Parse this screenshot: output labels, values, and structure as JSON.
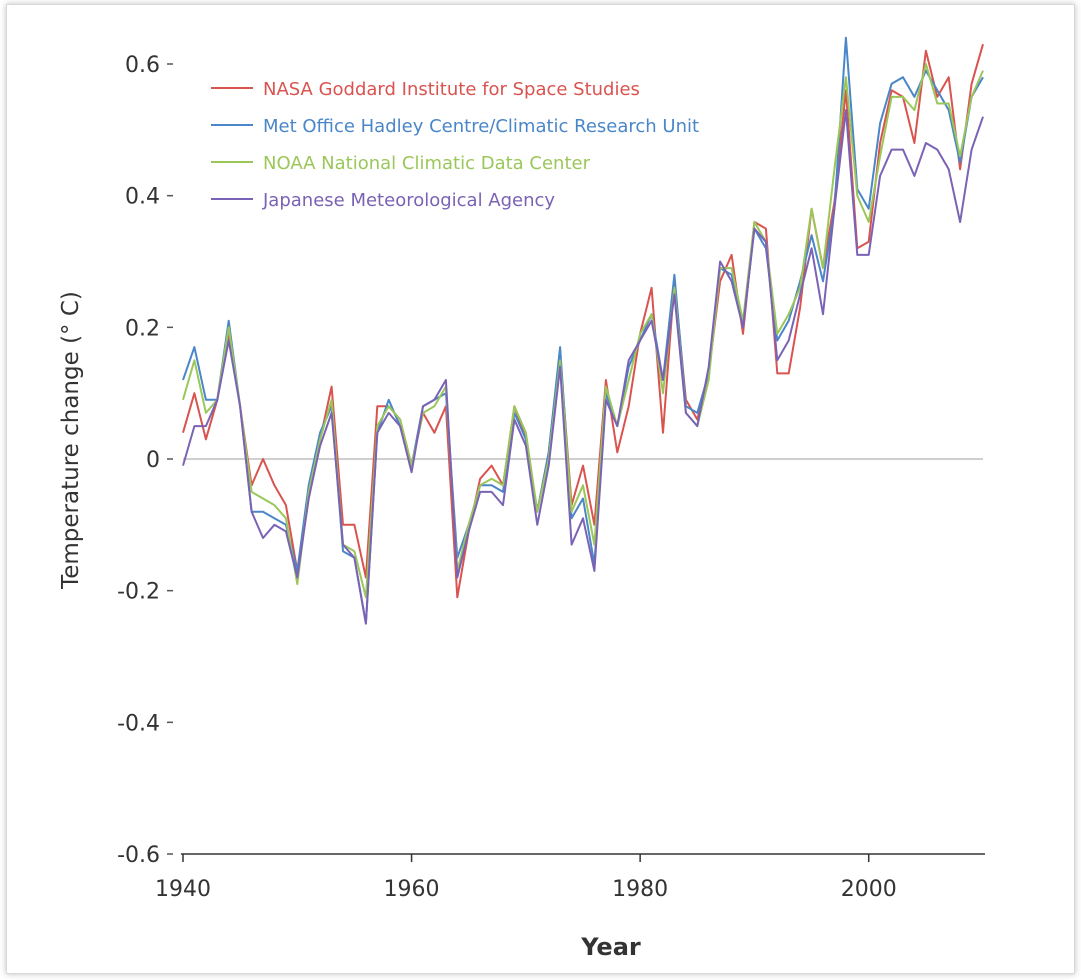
{
  "chart_data": {
    "type": "line",
    "title": "",
    "xlabel": "Year",
    "ylabel": "Temperature change (° C)",
    "xlim": [
      1940,
      2010
    ],
    "ylim": [
      -0.6,
      0.6
    ],
    "xticks": [
      1940,
      1960,
      1980,
      2000
    ],
    "yticks": [
      0.6,
      0.4,
      0.2,
      0,
      -0.2,
      -0.4,
      -0.6
    ],
    "ytick_labels": [
      "0.6",
      "0.4",
      "0.2",
      "0",
      "-0.2",
      "-0.4",
      "-0.6"
    ],
    "grid": false,
    "zero_line": true,
    "legend_position": "top-left",
    "x": [
      1940,
      1941,
      1942,
      1943,
      1944,
      1945,
      1946,
      1947,
      1948,
      1949,
      1950,
      1951,
      1952,
      1953,
      1954,
      1955,
      1956,
      1957,
      1958,
      1959,
      1960,
      1961,
      1962,
      1963,
      1964,
      1965,
      1966,
      1967,
      1968,
      1969,
      1970,
      1971,
      1972,
      1973,
      1974,
      1975,
      1976,
      1977,
      1978,
      1979,
      1980,
      1981,
      1982,
      1983,
      1984,
      1985,
      1986,
      1987,
      1988,
      1989,
      1990,
      1991,
      1992,
      1993,
      1994,
      1995,
      1996,
      1997,
      1998,
      1999,
      2000,
      2001,
      2002,
      2003,
      2004,
      2005,
      2006,
      2007,
      2008,
      2009,
      2010
    ],
    "series": [
      {
        "name": "NASA Goddard Institute for Space Studies",
        "color": "#d9534f",
        "values": [
          0.04,
          0.1,
          0.03,
          0.09,
          0.19,
          0.08,
          -0.04,
          0.0,
          -0.04,
          -0.07,
          -0.17,
          -0.06,
          0.03,
          0.11,
          -0.1,
          -0.1,
          -0.18,
          0.08,
          0.08,
          0.06,
          -0.01,
          0.07,
          0.04,
          0.08,
          -0.21,
          -0.11,
          -0.03,
          -0.01,
          -0.04,
          0.08,
          0.03,
          -0.08,
          0.01,
          0.16,
          -0.07,
          -0.01,
          -0.1,
          0.12,
          0.01,
          0.08,
          0.19,
          0.26,
          0.04,
          0.27,
          0.09,
          0.06,
          0.13,
          0.27,
          0.31,
          0.19,
          0.36,
          0.35,
          0.13,
          0.13,
          0.23,
          0.38,
          0.29,
          0.39,
          0.56,
          0.32,
          0.33,
          0.48,
          0.56,
          0.55,
          0.48,
          0.62,
          0.55,
          0.58,
          0.44,
          0.57,
          0.63
        ]
      },
      {
        "name": "Met Office Hadley Centre/Climatic Research Unit",
        "color": "#4a86c8",
        "values": [
          0.12,
          0.17,
          0.09,
          0.09,
          0.21,
          0.08,
          -0.08,
          -0.08,
          -0.09,
          -0.1,
          -0.17,
          -0.04,
          0.04,
          0.08,
          -0.14,
          -0.15,
          -0.25,
          0.04,
          0.09,
          0.05,
          -0.01,
          0.08,
          0.09,
          0.1,
          -0.15,
          -0.1,
          -0.04,
          -0.04,
          -0.05,
          0.07,
          0.03,
          -0.08,
          0.01,
          0.17,
          -0.09,
          -0.06,
          -0.16,
          0.1,
          0.05,
          0.14,
          0.18,
          0.22,
          0.12,
          0.28,
          0.08,
          0.07,
          0.13,
          0.29,
          0.28,
          0.2,
          0.35,
          0.32,
          0.18,
          0.21,
          0.27,
          0.34,
          0.27,
          0.38,
          0.64,
          0.41,
          0.38,
          0.51,
          0.57,
          0.58,
          0.55,
          0.59,
          0.56,
          0.53,
          0.45,
          0.55,
          0.58
        ]
      },
      {
        "name": "NOAA National Climatic Data Center",
        "color": "#9bc75a",
        "values": [
          0.09,
          0.15,
          0.07,
          0.09,
          0.2,
          0.08,
          -0.05,
          -0.06,
          -0.07,
          -0.09,
          -0.19,
          -0.05,
          0.03,
          0.09,
          -0.13,
          -0.14,
          -0.21,
          0.05,
          0.08,
          0.06,
          -0.01,
          0.07,
          0.08,
          0.11,
          -0.17,
          -0.1,
          -0.04,
          -0.03,
          -0.04,
          0.08,
          0.04,
          -0.08,
          0.0,
          0.15,
          -0.08,
          -0.04,
          -0.13,
          0.11,
          0.05,
          0.12,
          0.19,
          0.22,
          0.1,
          0.26,
          0.07,
          0.05,
          0.12,
          0.29,
          0.29,
          0.21,
          0.36,
          0.33,
          0.19,
          0.22,
          0.26,
          0.38,
          0.29,
          0.44,
          0.58,
          0.4,
          0.36,
          0.46,
          0.55,
          0.55,
          0.53,
          0.6,
          0.54,
          0.54,
          0.46,
          0.55,
          0.59
        ]
      },
      {
        "name": "Japanese Meteorological Agency",
        "color": "#7a62b5",
        "values": [
          -0.01,
          0.05,
          0.05,
          0.09,
          0.18,
          0.08,
          -0.08,
          -0.12,
          -0.1,
          -0.11,
          -0.18,
          -0.06,
          0.02,
          0.07,
          -0.13,
          -0.15,
          -0.25,
          0.04,
          0.07,
          0.05,
          -0.02,
          0.08,
          0.09,
          0.12,
          -0.18,
          -0.11,
          -0.05,
          -0.05,
          -0.07,
          0.06,
          0.02,
          -0.1,
          -0.01,
          0.14,
          -0.13,
          -0.09,
          -0.17,
          0.09,
          0.05,
          0.15,
          0.18,
          0.21,
          0.12,
          0.25,
          0.07,
          0.05,
          0.14,
          0.3,
          0.27,
          0.2,
          0.35,
          0.33,
          0.15,
          0.18,
          0.25,
          0.32,
          0.22,
          0.38,
          0.53,
          0.31,
          0.31,
          0.43,
          0.47,
          0.47,
          0.43,
          0.48,
          0.47,
          0.44,
          0.36,
          0.47,
          0.52
        ]
      }
    ]
  }
}
